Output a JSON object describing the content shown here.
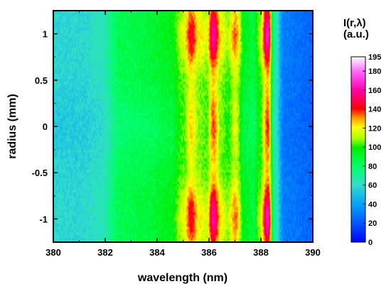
{
  "chart_data": {
    "type": "heatmap",
    "xlabel": "wavelength (nm)",
    "ylabel": "radius (mm)",
    "xlim": [
      380,
      390
    ],
    "ylim": [
      -1.25,
      1.25
    ],
    "x_ticks": [
      "380",
      "382",
      "384",
      "386",
      "388",
      "390"
    ],
    "y_ticks": [
      "1",
      "0.5",
      "0",
      "-0.5",
      "-1"
    ],
    "colorbar": {
      "title_line1": "I(r,λ)",
      "title_line2": "(a.u.)",
      "range": [
        0,
        195
      ],
      "ticks": [
        "195",
        "180",
        "160",
        "140",
        "120",
        "100",
        "80",
        "60",
        "40",
        "20",
        "0"
      ]
    },
    "spectrum_profile": [
      {
        "wavelength": 380.0,
        "intensity": 58
      },
      {
        "wavelength": 381.0,
        "intensity": 58
      },
      {
        "wavelength": 381.8,
        "intensity": 63
      },
      {
        "wavelength": 382.6,
        "intensity": 85
      },
      {
        "wavelength": 383.5,
        "intensity": 88
      },
      {
        "wavelength": 384.5,
        "intensity": 95
      },
      {
        "wavelength": 385.0,
        "intensity": 115
      },
      {
        "wavelength": 385.3,
        "intensity": 140
      },
      {
        "wavelength": 385.6,
        "intensity": 120
      },
      {
        "wavelength": 385.9,
        "intensity": 115
      },
      {
        "wavelength": 386.15,
        "intensity": 155
      },
      {
        "wavelength": 386.45,
        "intensity": 120
      },
      {
        "wavelength": 386.7,
        "intensity": 110
      },
      {
        "wavelength": 387.0,
        "intensity": 130
      },
      {
        "wavelength": 387.35,
        "intensity": 95
      },
      {
        "wavelength": 387.7,
        "intensity": 88
      },
      {
        "wavelength": 387.95,
        "intensity": 110
      },
      {
        "wavelength": 388.25,
        "intensity": 160
      },
      {
        "wavelength": 388.5,
        "intensity": 70
      },
      {
        "wavelength": 388.9,
        "intensity": 30
      },
      {
        "wavelength": 390.0,
        "intensity": 25
      }
    ],
    "radial_profile_note": "",
    "colorscale": [
      "#0000ff",
      "#0066ff",
      "#00aaff",
      "#33ddcc",
      "#00ff66",
      "#00ee00",
      "#aaff00",
      "#ffff00",
      "#ff9900",
      "#ff0000",
      "#ff00aa",
      "#ff66ff",
      "#ffffff"
    ]
  }
}
